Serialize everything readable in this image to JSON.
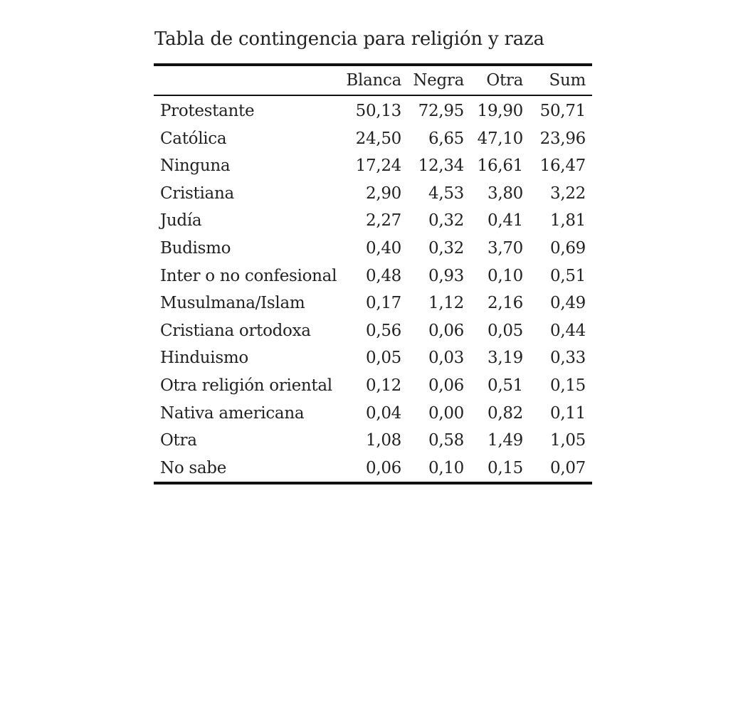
{
  "caption": "Tabla de contingencia para religión y raza",
  "table": {
    "headers": [
      "",
      "Blanca",
      "Negra",
      "Otra",
      "Sum"
    ],
    "rows": [
      {
        "label": "Protestante",
        "values": [
          "50,13",
          "72,95",
          "19,90",
          "50,71"
        ]
      },
      {
        "label": "Católica",
        "values": [
          "24,50",
          "6,65",
          "47,10",
          "23,96"
        ]
      },
      {
        "label": "Ninguna",
        "values": [
          "17,24",
          "12,34",
          "16,61",
          "16,47"
        ]
      },
      {
        "label": "Cristiana",
        "values": [
          "2,90",
          "4,53",
          "3,80",
          "3,22"
        ]
      },
      {
        "label": "Judía",
        "values": [
          "2,27",
          "0,32",
          "0,41",
          "1,81"
        ]
      },
      {
        "label": "Budismo",
        "values": [
          "0,40",
          "0,32",
          "3,70",
          "0,69"
        ]
      },
      {
        "label": "Inter o no confesional",
        "values": [
          "0,48",
          "0,93",
          "0,10",
          "0,51"
        ]
      },
      {
        "label": "Musulmana/Islam",
        "values": [
          "0,17",
          "1,12",
          "2,16",
          "0,49"
        ]
      },
      {
        "label": "Cristiana ortodoxa",
        "values": [
          "0,56",
          "0,06",
          "0,05",
          "0,44"
        ]
      },
      {
        "label": "Hinduismo",
        "values": [
          "0,05",
          "0,03",
          "3,19",
          "0,33"
        ]
      },
      {
        "label": "Otra religión oriental",
        "values": [
          "0,12",
          "0,06",
          "0,51",
          "0,15"
        ]
      },
      {
        "label": "Nativa americana",
        "values": [
          "0,04",
          "0,00",
          "0,82",
          "0,11"
        ]
      },
      {
        "label": "Otra",
        "values": [
          "1,08",
          "0,58",
          "1,49",
          "1,05"
        ]
      },
      {
        "label": "No sabe",
        "values": [
          "0,06",
          "0,10",
          "0,15",
          "0,07"
        ]
      }
    ]
  }
}
